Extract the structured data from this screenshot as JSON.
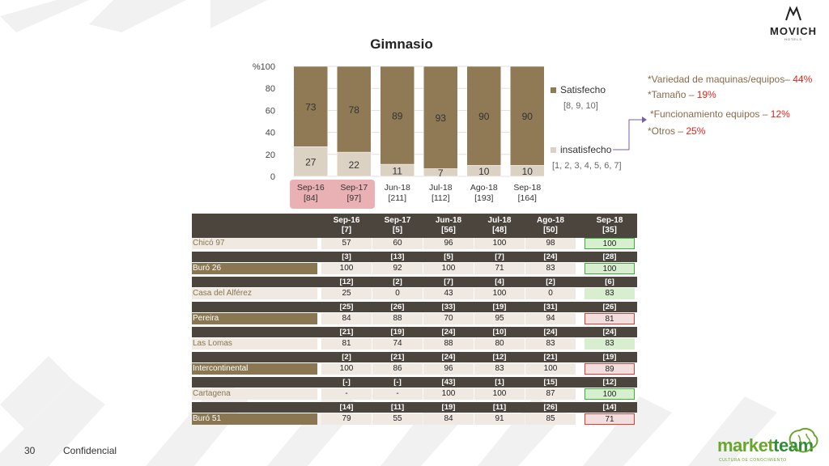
{
  "brand": {
    "name": "MOVICH",
    "sub": "HOTELS"
  },
  "chart_data": {
    "type": "bar",
    "stacked": true,
    "title": "Gimnasio",
    "ylabel": "%",
    "ylim": [
      0,
      100
    ],
    "yticks": [
      "0",
      "20",
      "40",
      "60",
      "80",
      "100"
    ],
    "ytop_label": "%100",
    "categories": [
      "Sep-16",
      "Sep-17",
      "Jun-18",
      "Jul-18",
      "Ago-18",
      "Sep-18"
    ],
    "category_counts": [
      "[84]",
      "[97]",
      "[211]",
      "[112]",
      "[193]",
      "[164]"
    ],
    "highlighted_categories": [
      0,
      1
    ],
    "series": [
      {
        "name": "insatisfecho",
        "range": "[1, 2, 3, 4, 5, 6, 7]",
        "color": "#dcd2c4",
        "values": [
          27,
          22,
          11,
          7,
          10,
          10
        ]
      },
      {
        "name": "Satisfecho",
        "range": "[8, 9, 10]",
        "color": "#8f7a55",
        "values": [
          73,
          78,
          89,
          93,
          90,
          90
        ]
      }
    ]
  },
  "annotations": [
    {
      "text": "*Variedad de maquinas/equipos– ",
      "pct": "44%"
    },
    {
      "text": "*Tamaño – ",
      "pct": "19%"
    },
    {
      "text": "*Funcionamiento equipos – ",
      "pct": "12%"
    },
    {
      "text": "*Otros – ",
      "pct": "25%"
    }
  ],
  "table": {
    "header_periods": [
      "Sep-16",
      "Sep-17",
      "Jun-18",
      "Jul-18",
      "Ago-18",
      "Sep-18"
    ],
    "rows": [
      {
        "name": "Chicó 97",
        "counts": [
          "[7]",
          "[5]",
          "[56]",
          "[48]",
          "[50]",
          "[35]"
        ],
        "values": [
          "57",
          "60",
          "96",
          "100",
          "98",
          "100"
        ],
        "last_status": "good"
      },
      {
        "name": "Buró 26",
        "counts": [
          "[3]",
          "[13]",
          "[5]",
          "[7]",
          "[24]",
          "[28]"
        ],
        "values": [
          "100",
          "92",
          "100",
          "71",
          "83",
          "100"
        ],
        "last_status": "good"
      },
      {
        "name": "Casa del Alférez",
        "counts": [
          "[12]",
          "[2]",
          "[7]",
          "[4]",
          "[2]",
          "[6]"
        ],
        "values": [
          "25",
          "0",
          "43",
          "100",
          "0",
          "83"
        ],
        "last_status": "mid"
      },
      {
        "name": "Pereira",
        "counts": [
          "[25]",
          "[26]",
          "[33]",
          "[19]",
          "[31]",
          "[26]"
        ],
        "values": [
          "84",
          "88",
          "70",
          "95",
          "94",
          "81"
        ],
        "last_status": "bad"
      },
      {
        "name": "Las Lomas",
        "counts": [
          "[21]",
          "[19]",
          "[24]",
          "[10]",
          "[24]",
          "[24]"
        ],
        "values": [
          "81",
          "74",
          "88",
          "80",
          "83",
          "83"
        ],
        "last_status": "mid"
      },
      {
        "name": "Intercontinental",
        "counts": [
          "[2]",
          "[21]",
          "[24]",
          "[12]",
          "[21]",
          "[19]"
        ],
        "values": [
          "100",
          "86",
          "96",
          "83",
          "100",
          "89"
        ],
        "last_status": "bad"
      },
      {
        "name": "Cartagena",
        "counts": [
          "[-]",
          "[-]",
          "[43]",
          "[1]",
          "[15]",
          "[12]"
        ],
        "values": [
          "-",
          "-",
          "100",
          "100",
          "87",
          "100"
        ],
        "last_status": "good"
      },
      {
        "name": "Buró 51",
        "counts": [
          "[14]",
          "[11]",
          "[19]",
          "[11]",
          "[26]",
          "[14]"
        ],
        "values": [
          "79",
          "55",
          "84",
          "91",
          "85",
          "71"
        ],
        "last_status": "bad"
      }
    ]
  },
  "footer": {
    "page_number": "30",
    "label": "Confidencial"
  },
  "partner": {
    "name_a": "market",
    "name_b": "team",
    "tagline": "CULTURA DE CONOCIMIENTO"
  }
}
